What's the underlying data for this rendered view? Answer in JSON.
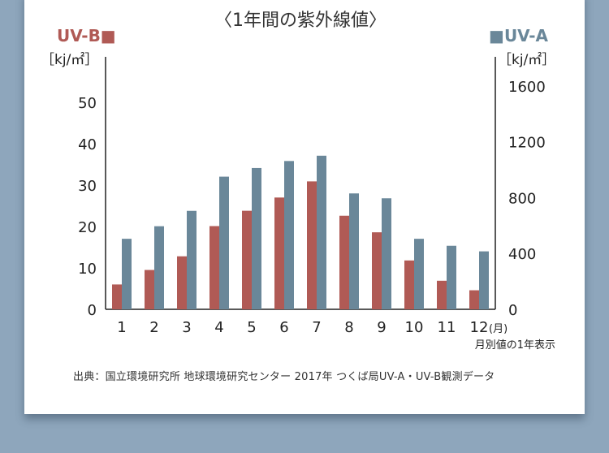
{
  "chart_data": {
    "type": "bar",
    "title": "〈1年間の紫外線値〉",
    "categories": [
      "1",
      "2",
      "3",
      "4",
      "5",
      "6",
      "7",
      "8",
      "9",
      "10",
      "11",
      "12"
    ],
    "x_unit": "(月)",
    "x_note": "月別値の1年表示",
    "series": [
      {
        "name": "UV-B",
        "legend": "UV-B■",
        "axis": "left",
        "color": "#b05a55",
        "values": [
          6,
          9.5,
          12.8,
          20.1,
          23.8,
          27,
          30.9,
          22.6,
          18.6,
          11.8,
          6.9,
          4.6
        ]
      },
      {
        "name": "UV-A",
        "legend": "■UV-A",
        "axis": "right",
        "color": "#6a8799",
        "values": [
          505,
          595,
          705,
          950,
          1012,
          1062,
          1100,
          830,
          795,
          505,
          455,
          415
        ]
      }
    ],
    "y_left": {
      "label": "［kj/㎡］",
      "ylim": [
        0,
        60
      ],
      "ticks": [
        "0",
        "10",
        "20",
        "30",
        "40",
        "50"
      ]
    },
    "y_right": {
      "label": "［kj/㎡］",
      "ylim": [
        0,
        1750
      ],
      "ticks": [
        "0",
        "400",
        "800",
        "1200",
        "1600"
      ]
    }
  },
  "source": "出典：国立環境研究所 地球環境研究センター 2017年 つくば局UV-A・UV-B観測データ"
}
